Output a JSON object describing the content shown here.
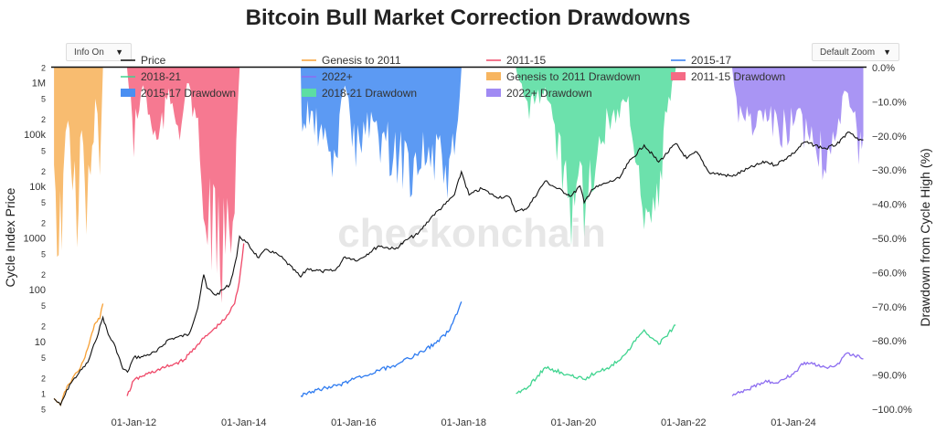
{
  "title": "Bitcoin Bull Market Correction Drawdowns",
  "controls": {
    "info": "Info On",
    "zoom": "Default Zoom"
  },
  "watermark": "checkonchain",
  "chart_data": {
    "type": "line",
    "title": "Bitcoin Bull Market Correction Drawdowns",
    "ylabel": "Cycle Index Price",
    "y2label": "Drawdown from Cycle High (%)",
    "y_scale": "log",
    "ylim": [
      0.5,
      2000000
    ],
    "y2lim": [
      -100,
      0
    ],
    "xlim": [
      "2010-07-01",
      "2025-05-01"
    ],
    "x_ticks": [
      "01-Jan-12",
      "01-Jan-14",
      "01-Jan-16",
      "01-Jan-18",
      "01-Jan-20",
      "01-Jan-22",
      "01-Jan-24"
    ],
    "x_tick_dates": [
      "2012-01-01",
      "2014-01-01",
      "2016-01-01",
      "2018-01-01",
      "2020-01-01",
      "2022-01-01",
      "2024-01-01"
    ],
    "y_tick_labels": [
      {
        "v": 2000000,
        "t": "2"
      },
      {
        "v": 1000000,
        "t": "1M"
      },
      {
        "v": 500000,
        "t": "5"
      },
      {
        "v": 200000,
        "t": "2"
      },
      {
        "v": 100000,
        "t": "100k"
      },
      {
        "v": 50000,
        "t": "5"
      },
      {
        "v": 20000,
        "t": "2"
      },
      {
        "v": 10000,
        "t": "10k"
      },
      {
        "v": 5000,
        "t": "5"
      },
      {
        "v": 2000,
        "t": "2"
      },
      {
        "v": 1000,
        "t": "1000"
      },
      {
        "v": 500,
        "t": "5"
      },
      {
        "v": 200,
        "t": "2"
      },
      {
        "v": 100,
        "t": "100"
      },
      {
        "v": 50,
        "t": "5"
      },
      {
        "v": 20,
        "t": "2"
      },
      {
        "v": 10,
        "t": "10"
      },
      {
        "v": 5,
        "t": "5"
      },
      {
        "v": 2,
        "t": "2"
      },
      {
        "v": 1,
        "t": "1"
      },
      {
        "v": 0.5,
        "t": "5"
      }
    ],
    "y2_ticks": [
      0,
      -10,
      -20,
      -30,
      -40,
      -50,
      -60,
      -70,
      -80,
      -90,
      -100
    ],
    "y2_tick_labels": [
      "0.0%",
      "−10.0%",
      "−20.0%",
      "−30.0%",
      "−40.0%",
      "−50.0%",
      "−60.0%",
      "−70.0%",
      "−80.0%",
      "−90.0%",
      "−100.0%"
    ],
    "grid": false,
    "legend_position": "top",
    "legend": [
      {
        "name": "Price",
        "color": "#111111",
        "kind": "line"
      },
      {
        "name": "Genesis to 2011",
        "color": "#f7a035",
        "kind": "line"
      },
      {
        "name": "2011-15",
        "color": "#ef4868",
        "kind": "line"
      },
      {
        "name": "2015-17",
        "color": "#2e7bf0",
        "kind": "line"
      },
      {
        "name": "2018-21",
        "color": "#3fd48f",
        "kind": "line"
      },
      {
        "name": "2022+",
        "color": "#8c6cf0",
        "kind": "line"
      },
      {
        "name": "Genesis to 2011 Drawdown",
        "color": "#f7b560",
        "kind": "area"
      },
      {
        "name": "2011-15 Drawdown",
        "color": "#f56a85",
        "kind": "area"
      },
      {
        "name": "2015-17 Drawdown",
        "color": "#4a8ff2",
        "kind": "area"
      },
      {
        "name": "2018-21 Drawdown",
        "color": "#5cdea3",
        "kind": "area"
      },
      {
        "name": "2022+ Drawdown",
        "color": "#a08af3",
        "kind": "area"
      }
    ],
    "price_series": {
      "name": "Price",
      "color": "#111111",
      "points": [
        [
          "2010-07-20",
          0.8
        ],
        [
          "2010-09-01",
          0.6
        ],
        [
          "2010-11-01",
          1.5
        ],
        [
          "2011-01-01",
          2.5
        ],
        [
          "2011-03-01",
          4
        ],
        [
          "2011-04-20",
          10
        ],
        [
          "2011-06-10",
          30
        ],
        [
          "2011-07-15",
          14
        ],
        [
          "2011-09-01",
          8
        ],
        [
          "2011-10-20",
          3
        ],
        [
          "2011-11-20",
          2.6
        ],
        [
          "2012-01-01",
          5
        ],
        [
          "2012-03-01",
          5.2
        ],
        [
          "2012-06-01",
          6.5
        ],
        [
          "2012-08-15",
          11
        ],
        [
          "2012-10-01",
          12
        ],
        [
          "2013-01-01",
          14
        ],
        [
          "2013-03-01",
          45
        ],
        [
          "2013-04-10",
          200
        ],
        [
          "2013-05-01",
          110
        ],
        [
          "2013-07-01",
          80
        ],
        [
          "2013-10-01",
          130
        ],
        [
          "2013-11-15",
          450
        ],
        [
          "2013-12-04",
          1100
        ],
        [
          "2014-01-15",
          850
        ],
        [
          "2014-04-10",
          420
        ],
        [
          "2014-06-01",
          620
        ],
        [
          "2014-09-01",
          450
        ],
        [
          "2015-01-14",
          180
        ],
        [
          "2015-03-01",
          260
        ],
        [
          "2015-06-01",
          230
        ],
        [
          "2015-09-01",
          240
        ],
        [
          "2015-11-04",
          440
        ],
        [
          "2016-02-01",
          380
        ],
        [
          "2016-06-15",
          720
        ],
        [
          "2016-10-01",
          620
        ],
        [
          "2017-01-01",
          1000
        ],
        [
          "2017-03-01",
          1200
        ],
        [
          "2017-06-01",
          2600
        ],
        [
          "2017-09-01",
          4600
        ],
        [
          "2017-11-01",
          7000
        ],
        [
          "2017-12-17",
          19500
        ],
        [
          "2018-02-06",
          6900
        ],
        [
          "2018-05-01",
          9200
        ],
        [
          "2018-08-01",
          6400
        ],
        [
          "2018-11-01",
          6300
        ],
        [
          "2018-12-15",
          3250
        ],
        [
          "2019-03-01",
          3900
        ],
        [
          "2019-06-26",
          12800
        ],
        [
          "2019-09-01",
          9700
        ],
        [
          "2019-12-17",
          6600
        ],
        [
          "2020-02-13",
          10300
        ],
        [
          "2020-03-12",
          4900
        ],
        [
          "2020-05-01",
          8800
        ],
        [
          "2020-08-01",
          11600
        ],
        [
          "2020-11-01",
          14500
        ],
        [
          "2020-12-31",
          29000
        ],
        [
          "2021-04-14",
          64000
        ],
        [
          "2021-07-20",
          29800
        ],
        [
          "2021-11-10",
          68000
        ],
        [
          "2022-01-22",
          35000
        ],
        [
          "2022-03-30",
          47000
        ],
        [
          "2022-06-18",
          19000
        ],
        [
          "2022-11-21",
          15800
        ],
        [
          "2023-03-01",
          22000
        ],
        [
          "2023-07-01",
          30500
        ],
        [
          "2023-09-01",
          26000
        ],
        [
          "2024-01-01",
          44000
        ],
        [
          "2024-03-14",
          73000
        ],
        [
          "2024-08-05",
          54000
        ],
        [
          "2024-11-01",
          70000
        ],
        [
          "2024-12-17",
          106000
        ],
        [
          "2025-01-20",
          105000
        ],
        [
          "2025-03-10",
          79000
        ],
        [
          "2025-04-10",
          80000
        ]
      ]
    },
    "cycle_series": [
      {
        "name": "Genesis to 2011",
        "color": "#f7a035",
        "points": [
          [
            "2010-07-20",
            0.8
          ],
          [
            "2010-09-01",
            0.6
          ],
          [
            "2010-10-15",
            1.4
          ],
          [
            "2010-11-20",
            2.0
          ],
          [
            "2011-01-01",
            2.8
          ],
          [
            "2011-02-10",
            5
          ],
          [
            "2011-03-20",
            12
          ],
          [
            "2011-04-15",
            22
          ],
          [
            "2011-05-20",
            28
          ],
          [
            "2011-06-10",
            55
          ]
        ]
      },
      {
        "name": "2011-15",
        "color": "#ef4868",
        "points": [
          [
            "2011-11-18",
            0.9
          ],
          [
            "2012-01-01",
            1.8
          ],
          [
            "2012-03-01",
            2.2
          ],
          [
            "2012-06-01",
            2.8
          ],
          [
            "2012-09-01",
            3.5
          ],
          [
            "2012-12-01",
            4.5
          ],
          [
            "2013-03-01",
            9
          ],
          [
            "2013-06-01",
            16
          ],
          [
            "2013-09-01",
            28
          ],
          [
            "2013-11-01",
            55
          ],
          [
            "2013-12-01",
            140
          ],
          [
            "2014-01-01",
            800
          ]
        ]
      },
      {
        "name": "2015-17",
        "color": "#2e7bf0",
        "points": [
          [
            "2015-01-14",
            0.9
          ],
          [
            "2015-04-01",
            1.1
          ],
          [
            "2015-07-01",
            1.3
          ],
          [
            "2015-10-01",
            1.5
          ],
          [
            "2016-01-01",
            1.9
          ],
          [
            "2016-04-01",
            2.2
          ],
          [
            "2016-07-01",
            3.0
          ],
          [
            "2016-10-01",
            3.3
          ],
          [
            "2017-01-01",
            4.8
          ],
          [
            "2017-04-01",
            6.5
          ],
          [
            "2017-07-01",
            9.5
          ],
          [
            "2017-10-01",
            17
          ],
          [
            "2017-12-17",
            60
          ]
        ]
      },
      {
        "name": "2018-21",
        "color": "#3fd48f",
        "points": [
          [
            "2018-12-15",
            1.0
          ],
          [
            "2019-03-01",
            1.3
          ],
          [
            "2019-06-26",
            3.2
          ],
          [
            "2019-09-01",
            2.8
          ],
          [
            "2019-12-17",
            2.2
          ],
          [
            "2020-03-12",
            1.9
          ],
          [
            "2020-06-01",
            2.6
          ],
          [
            "2020-09-01",
            3.3
          ],
          [
            "2020-12-01",
            5.5
          ],
          [
            "2021-04-14",
            17
          ],
          [
            "2021-07-20",
            9
          ],
          [
            "2021-11-10",
            21
          ]
        ]
      },
      {
        "name": "2022+",
        "color": "#8c6cf0",
        "points": [
          [
            "2022-11-21",
            0.9
          ],
          [
            "2023-03-01",
            1.2
          ],
          [
            "2023-07-01",
            1.8
          ],
          [
            "2023-09-01",
            1.6
          ],
          [
            "2024-01-01",
            2.4
          ],
          [
            "2024-03-14",
            4.0
          ],
          [
            "2024-08-05",
            3.2
          ],
          [
            "2024-11-01",
            3.8
          ],
          [
            "2024-12-17",
            6.0
          ],
          [
            "2025-02-01",
            5.8
          ],
          [
            "2025-04-10",
            4.7
          ]
        ]
      }
    ],
    "drawdown_series": [
      {
        "name": "Genesis to 2011 Drawdown",
        "color": "#f7b560",
        "points": [
          [
            "2010-07-20",
            -30
          ],
          [
            "2010-08-20",
            -65
          ],
          [
            "2010-09-20",
            -45
          ],
          [
            "2010-10-20",
            -20
          ],
          [
            "2010-11-20",
            -35
          ],
          [
            "2010-12-20",
            -55
          ],
          [
            "2011-01-20",
            -25
          ],
          [
            "2011-02-20",
            -45
          ],
          [
            "2011-03-20",
            -50
          ],
          [
            "2011-04-20",
            -15
          ],
          [
            "2011-05-20",
            -30
          ],
          [
            "2011-06-10",
            -0.5
          ]
        ]
      },
      {
        "name": "2011-15 Drawdown",
        "color": "#f56a85",
        "points": [
          [
            "2011-11-18",
            -0.5
          ],
          [
            "2012-01-01",
            -25
          ],
          [
            "2012-03-01",
            -6
          ],
          [
            "2012-06-01",
            -28
          ],
          [
            "2012-08-20",
            -10
          ],
          [
            "2012-11-01",
            -20
          ],
          [
            "2013-01-01",
            -5
          ],
          [
            "2013-03-15",
            -30
          ],
          [
            "2013-04-20",
            -60
          ],
          [
            "2013-05-20",
            -52
          ],
          [
            "2013-07-05",
            -68
          ],
          [
            "2013-09-01",
            -66
          ],
          [
            "2013-11-01",
            -40
          ],
          [
            "2013-12-04",
            -0.5
          ]
        ]
      },
      {
        "name": "2015-17 Drawdown",
        "color": "#4a8ff2",
        "points": [
          [
            "2015-01-14",
            -0.5
          ],
          [
            "2015-01-25",
            -28
          ],
          [
            "2015-03-01",
            -15
          ],
          [
            "2015-06-01",
            -25
          ],
          [
            "2015-08-24",
            -35
          ],
          [
            "2015-11-04",
            -5
          ],
          [
            "2016-01-15",
            -30
          ],
          [
            "2016-04-01",
            -20
          ],
          [
            "2016-08-02",
            -28
          ],
          [
            "2017-01-11",
            -35
          ],
          [
            "2017-03-25",
            -30
          ],
          [
            "2017-07-15",
            -34
          ],
          [
            "2017-09-15",
            -38
          ],
          [
            "2017-11-12",
            -30
          ],
          [
            "2017-12-17",
            -0.5
          ]
        ]
      },
      {
        "name": "2018-21 Drawdown",
        "color": "#5cdea3",
        "points": [
          [
            "2018-12-15",
            -0.5
          ],
          [
            "2019-03-01",
            -15
          ],
          [
            "2019-06-26",
            -8
          ],
          [
            "2019-09-25",
            -30
          ],
          [
            "2019-12-17",
            -48
          ],
          [
            "2020-02-13",
            -25
          ],
          [
            "2020-03-12",
            -67
          ],
          [
            "2020-05-01",
            -35
          ],
          [
            "2020-09-01",
            -18
          ],
          [
            "2020-12-31",
            -10
          ],
          [
            "2021-01-22",
            -28
          ],
          [
            "2021-05-19",
            -50
          ],
          [
            "2021-07-20",
            -54
          ],
          [
            "2021-09-01",
            -20
          ],
          [
            "2021-11-10",
            -0.5
          ]
        ]
      },
      {
        "name": "2022+ Drawdown",
        "color": "#a08af3",
        "points": [
          [
            "2022-11-21",
            -0.5
          ],
          [
            "2023-01-01",
            -15
          ],
          [
            "2023-03-10",
            -20
          ],
          [
            "2023-06-15",
            -18
          ],
          [
            "2023-09-11",
            -22
          ],
          [
            "2024-01-23",
            -20
          ],
          [
            "2024-05-01",
            -24
          ],
          [
            "2024-08-05",
            -32
          ],
          [
            "2024-09-06",
            -25
          ],
          [
            "2024-12-17",
            -10
          ],
          [
            "2025-03-10",
            -27
          ],
          [
            "2025-04-10",
            -20
          ]
        ]
      }
    ]
  }
}
